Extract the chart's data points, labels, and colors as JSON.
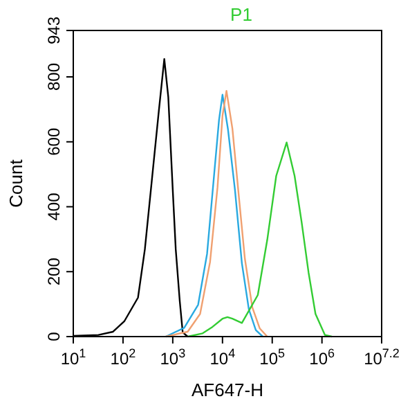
{
  "chart_data": {
    "type": "line",
    "title": "P1",
    "xlabel": "AF647-H",
    "ylabel": "Count",
    "log": "x",
    "grid": false,
    "marker": "none",
    "line_style": "solid",
    "xlim": [
      10,
      15848932
    ],
    "xticks": [
      {
        "value": 10,
        "label": "10$^{1}$"
      },
      {
        "value": 100,
        "label": "10$^{2}$"
      },
      {
        "value": 1000,
        "label": "10$^{3}$"
      },
      {
        "value": 10000,
        "label": "10$^{4}$"
      },
      {
        "value": 100000,
        "label": "10$^{5}$"
      },
      {
        "value": 1000000,
        "label": "10$^{6}$"
      },
      {
        "value": 15848932,
        "label": "10$^{7.2}$"
      }
    ],
    "ylim": [
      0,
      943
    ],
    "yticks": [
      0,
      200,
      400,
      600,
      800,
      943
    ],
    "series": [
      {
        "color": "#000000",
        "x": [
          10,
          32,
          63,
          107,
          200,
          275,
          380,
          525,
          676,
          813,
          1000,
          1148,
          1380,
          1585,
          1995
        ],
        "values": [
          2,
          5,
          15,
          48,
          120,
          269,
          482,
          695,
          855,
          738,
          452,
          269,
          111,
          13,
          0
        ]
      },
      {
        "color": "#29a9e0",
        "x": [
          724,
          1698,
          3236,
          4898,
          6761,
          8511,
          10000,
          12882,
          17783,
          24547,
          33884,
          46774,
          64565
        ],
        "values": [
          0,
          27,
          98,
          255,
          496,
          667,
          745,
          639,
          453,
          226,
          84,
          20,
          0
        ]
      },
      {
        "color": "#f0a070",
        "x": [
          724,
          1995,
          3548,
          5623,
          7943,
          10000,
          12023,
          15849,
          21380,
          28184,
          39811,
          56234,
          79433
        ],
        "values": [
          0,
          15,
          70,
          230,
          460,
          680,
          757,
          640,
          430,
          240,
          90,
          25,
          0
        ]
      },
      {
        "color": "#33cc33",
        "x": [
          1995,
          3981,
          6310,
          10000,
          12589,
          15849,
          24547,
          51286,
          79433,
          120226,
          194984,
          281838,
          389045,
          537032,
          741310,
          1148154,
          1584893
        ],
        "values": [
          0,
          10,
          30,
          55,
          60,
          55,
          42,
          128,
          298,
          495,
          598,
          495,
          354,
          198,
          70,
          5,
          0
        ]
      }
    ]
  }
}
